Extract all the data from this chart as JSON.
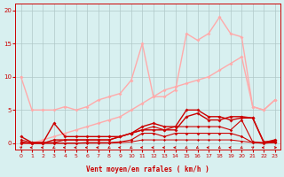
{
  "xlabel": "Vent moyen/en rafales ( km/h )",
  "xlim": [
    -0.5,
    23.5
  ],
  "ylim": [
    -1.0,
    21
  ],
  "yticks": [
    0,
    5,
    10,
    15,
    20
  ],
  "xticks": [
    0,
    1,
    2,
    3,
    4,
    5,
    6,
    7,
    8,
    9,
    10,
    11,
    12,
    13,
    14,
    15,
    16,
    17,
    18,
    19,
    20,
    21,
    22,
    23
  ],
  "bg_color": "#d8f0f0",
  "grid_color": "#b0c8c8",
  "series": [
    {
      "comment": "light pink upper - starts at 10, trends up to ~19",
      "x": [
        0,
        1,
        2,
        3,
        4,
        5,
        6,
        7,
        8,
        9,
        10,
        11,
        12,
        13,
        14,
        15,
        16,
        17,
        18,
        19,
        20,
        21,
        22,
        23
      ],
      "y": [
        10.0,
        5.0,
        5.0,
        5.0,
        5.5,
        5.0,
        5.5,
        6.5,
        7.0,
        7.5,
        9.5,
        15.0,
        7.0,
        7.0,
        8.0,
        16.5,
        15.5,
        16.5,
        19.0,
        16.5,
        16.0,
        5.5,
        5.0,
        6.5
      ],
      "color": "#ffaaaa",
      "lw": 1.0,
      "marker": "D",
      "ms": 2.0
    },
    {
      "comment": "light pink lower - starts at 0, trends up to ~13",
      "x": [
        0,
        1,
        2,
        3,
        4,
        5,
        6,
        7,
        8,
        9,
        10,
        11,
        12,
        13,
        14,
        15,
        16,
        17,
        18,
        19,
        20,
        21,
        22,
        23
      ],
      "y": [
        0.0,
        0.0,
        0.5,
        1.0,
        1.5,
        2.0,
        2.5,
        3.0,
        3.5,
        4.0,
        5.0,
        6.0,
        7.0,
        8.0,
        8.5,
        9.0,
        9.5,
        10.0,
        11.0,
        12.0,
        13.0,
        5.5,
        5.0,
        6.5
      ],
      "color": "#ffaaaa",
      "lw": 1.0,
      "marker": "D",
      "ms": 2.0
    },
    {
      "comment": "dark red - starts at ~1, drops to 0, then rises to ~3-5",
      "x": [
        0,
        1,
        2,
        3,
        4,
        5,
        6,
        7,
        8,
        9,
        10,
        11,
        12,
        13,
        14,
        15,
        16,
        17,
        18,
        19,
        20,
        21,
        22,
        23
      ],
      "y": [
        1.0,
        0.1,
        0.1,
        3.0,
        1.0,
        1.0,
        1.0,
        1.0,
        1.0,
        1.0,
        1.5,
        2.5,
        3.0,
        2.5,
        2.5,
        5.0,
        5.0,
        4.0,
        4.0,
        3.5,
        3.8,
        3.8,
        0.2,
        0.3
      ],
      "color": "#cc0000",
      "lw": 1.0,
      "marker": "D",
      "ms": 2.0
    },
    {
      "comment": "dark red lower cluster 1",
      "x": [
        0,
        1,
        2,
        3,
        4,
        5,
        6,
        7,
        8,
        9,
        10,
        11,
        12,
        13,
        14,
        15,
        16,
        17,
        18,
        19,
        20,
        21,
        22,
        23
      ],
      "y": [
        0.5,
        0.1,
        0.1,
        0.1,
        0.5,
        0.5,
        0.5,
        0.5,
        0.5,
        1.0,
        1.5,
        2.0,
        2.5,
        2.0,
        2.5,
        2.5,
        2.5,
        2.5,
        2.5,
        2.0,
        3.5,
        0.2,
        0.1,
        0.2
      ],
      "color": "#cc0000",
      "lw": 0.8,
      "marker": "D",
      "ms": 1.8
    },
    {
      "comment": "dark red lower cluster 2 - very flat near 0",
      "x": [
        0,
        1,
        2,
        3,
        4,
        5,
        6,
        7,
        8,
        9,
        10,
        11,
        12,
        13,
        14,
        15,
        16,
        17,
        18,
        19,
        20,
        21,
        22,
        23
      ],
      "y": [
        0.2,
        0.0,
        0.0,
        0.0,
        0.0,
        0.0,
        0.1,
        0.1,
        0.1,
        0.2,
        0.5,
        1.5,
        1.5,
        1.0,
        1.5,
        1.5,
        1.5,
        1.5,
        1.5,
        1.5,
        1.0,
        0.1,
        0.0,
        0.1
      ],
      "color": "#cc0000",
      "lw": 0.8,
      "marker": "D",
      "ms": 1.8
    },
    {
      "comment": "dark red very flat near 0",
      "x": [
        0,
        1,
        2,
        3,
        4,
        5,
        6,
        7,
        8,
        9,
        10,
        11,
        12,
        13,
        14,
        15,
        16,
        17,
        18,
        19,
        20,
        21,
        22,
        23
      ],
      "y": [
        0.1,
        0.0,
        0.0,
        0.0,
        0.0,
        0.0,
        0.0,
        0.0,
        0.0,
        0.1,
        0.2,
        0.5,
        0.5,
        0.5,
        0.5,
        0.5,
        0.5,
        0.5,
        0.5,
        0.5,
        0.3,
        0.1,
        0.0,
        0.1
      ],
      "color": "#cc0000",
      "lw": 0.7,
      "marker": "D",
      "ms": 1.5
    },
    {
      "comment": "dark red medium - rises to 4",
      "x": [
        0,
        1,
        2,
        3,
        4,
        5,
        6,
        7,
        8,
        9,
        10,
        11,
        12,
        13,
        14,
        15,
        16,
        17,
        18,
        19,
        20,
        21,
        22,
        23
      ],
      "y": [
        0.0,
        0.0,
        0.0,
        0.5,
        0.5,
        0.5,
        0.5,
        0.5,
        0.5,
        1.0,
        1.5,
        2.0,
        2.0,
        2.0,
        2.0,
        4.0,
        4.5,
        3.5,
        3.5,
        4.0,
        4.0,
        3.8,
        0.1,
        0.5
      ],
      "color": "#cc0000",
      "lw": 1.0,
      "marker": "D",
      "ms": 2.0
    }
  ],
  "wind_arrows": {
    "x": [
      0,
      1,
      2,
      3,
      4,
      5,
      6,
      7,
      8,
      9,
      10,
      11,
      12,
      13,
      14,
      15,
      16,
      17,
      18,
      19,
      20,
      21,
      22,
      23
    ],
    "angles_deg": [
      45,
      270,
      270,
      225,
      270,
      270,
      270,
      270,
      225,
      270,
      225,
      270,
      270,
      270,
      270,
      225,
      225,
      270,
      225,
      270,
      225,
      45,
      270,
      90
    ]
  }
}
